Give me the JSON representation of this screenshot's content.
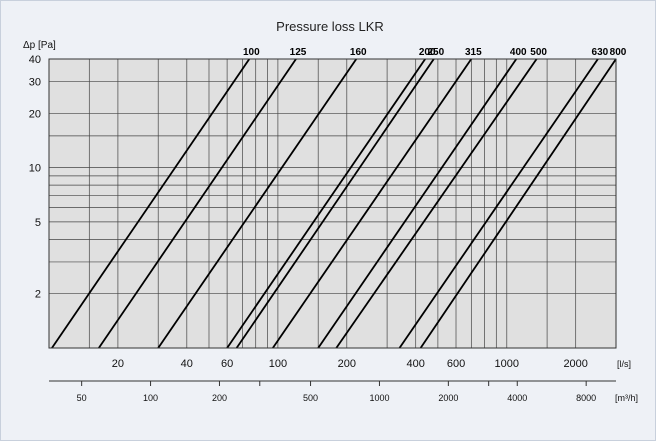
{
  "chart_data": {
    "type": "line",
    "title": "Pressure loss LKR",
    "ylabel": "Δp [Pa]",
    "xlabel": "[l/s]",
    "x2label": "[m³/h]",
    "xscale": "log",
    "yscale": "log",
    "xlim": [
      10,
      3000
    ],
    "ylim": [
      1,
      40
    ],
    "grid": true,
    "y_ticks": [
      {
        "value": 40,
        "label": "40"
      },
      {
        "value": 30,
        "label": "30"
      },
      {
        "value": 20,
        "label": "20"
      },
      {
        "value": 10,
        "label": "10"
      },
      {
        "value": 5,
        "label": "5"
      },
      {
        "value": 2,
        "label": "2"
      }
    ],
    "x_ticks": [
      {
        "value": 20,
        "label": "20"
      },
      {
        "value": 40,
        "label": "40"
      },
      {
        "value": 60,
        "label": "60"
      },
      {
        "value": 100,
        "label": "100"
      },
      {
        "value": 200,
        "label": "200"
      },
      {
        "value": 400,
        "label": "400"
      },
      {
        "value": 600,
        "label": "600"
      },
      {
        "value": 1000,
        "label": "1000"
      },
      {
        "value": 2000,
        "label": "2000"
      }
    ],
    "x2_ticks": [
      {
        "value": 50,
        "label": "50"
      },
      {
        "value": 100,
        "label": "100"
      },
      {
        "value": 200,
        "label": "200"
      },
      {
        "value": 500,
        "label": "500"
      },
      {
        "value": 1000,
        "label": "1000"
      },
      {
        "value": 2000,
        "label": "2000"
      },
      {
        "value": 4000,
        "label": "4000"
      },
      {
        "value": 8000,
        "label": "8000"
      }
    ],
    "series": [
      {
        "name": "100",
        "x": [
          10.3,
          75
        ],
        "y": [
          1,
          40
        ]
      },
      {
        "name": "125",
        "x": [
          16.5,
          120
        ],
        "y": [
          1,
          40
        ]
      },
      {
        "name": "160",
        "x": [
          30,
          220
        ],
        "y": [
          1,
          40
        ]
      },
      {
        "name": "200",
        "x": [
          60,
          440
        ],
        "y": [
          1,
          40
        ]
      },
      {
        "name": "250",
        "x": [
          66,
          480
        ],
        "y": [
          1,
          40
        ]
      },
      {
        "name": "315",
        "x": [
          95,
          700
        ],
        "y": [
          1,
          40
        ]
      },
      {
        "name": "400",
        "x": [
          150,
          1100
        ],
        "y": [
          1,
          40
        ]
      },
      {
        "name": "500",
        "x": [
          180,
          1350
        ],
        "y": [
          1,
          40
        ]
      },
      {
        "name": "630",
        "x": [
          340,
          2500
        ],
        "y": [
          1,
          40
        ]
      },
      {
        "name": "800",
        "x": [
          420,
          3000
        ],
        "y": [
          1,
          40
        ]
      }
    ]
  }
}
